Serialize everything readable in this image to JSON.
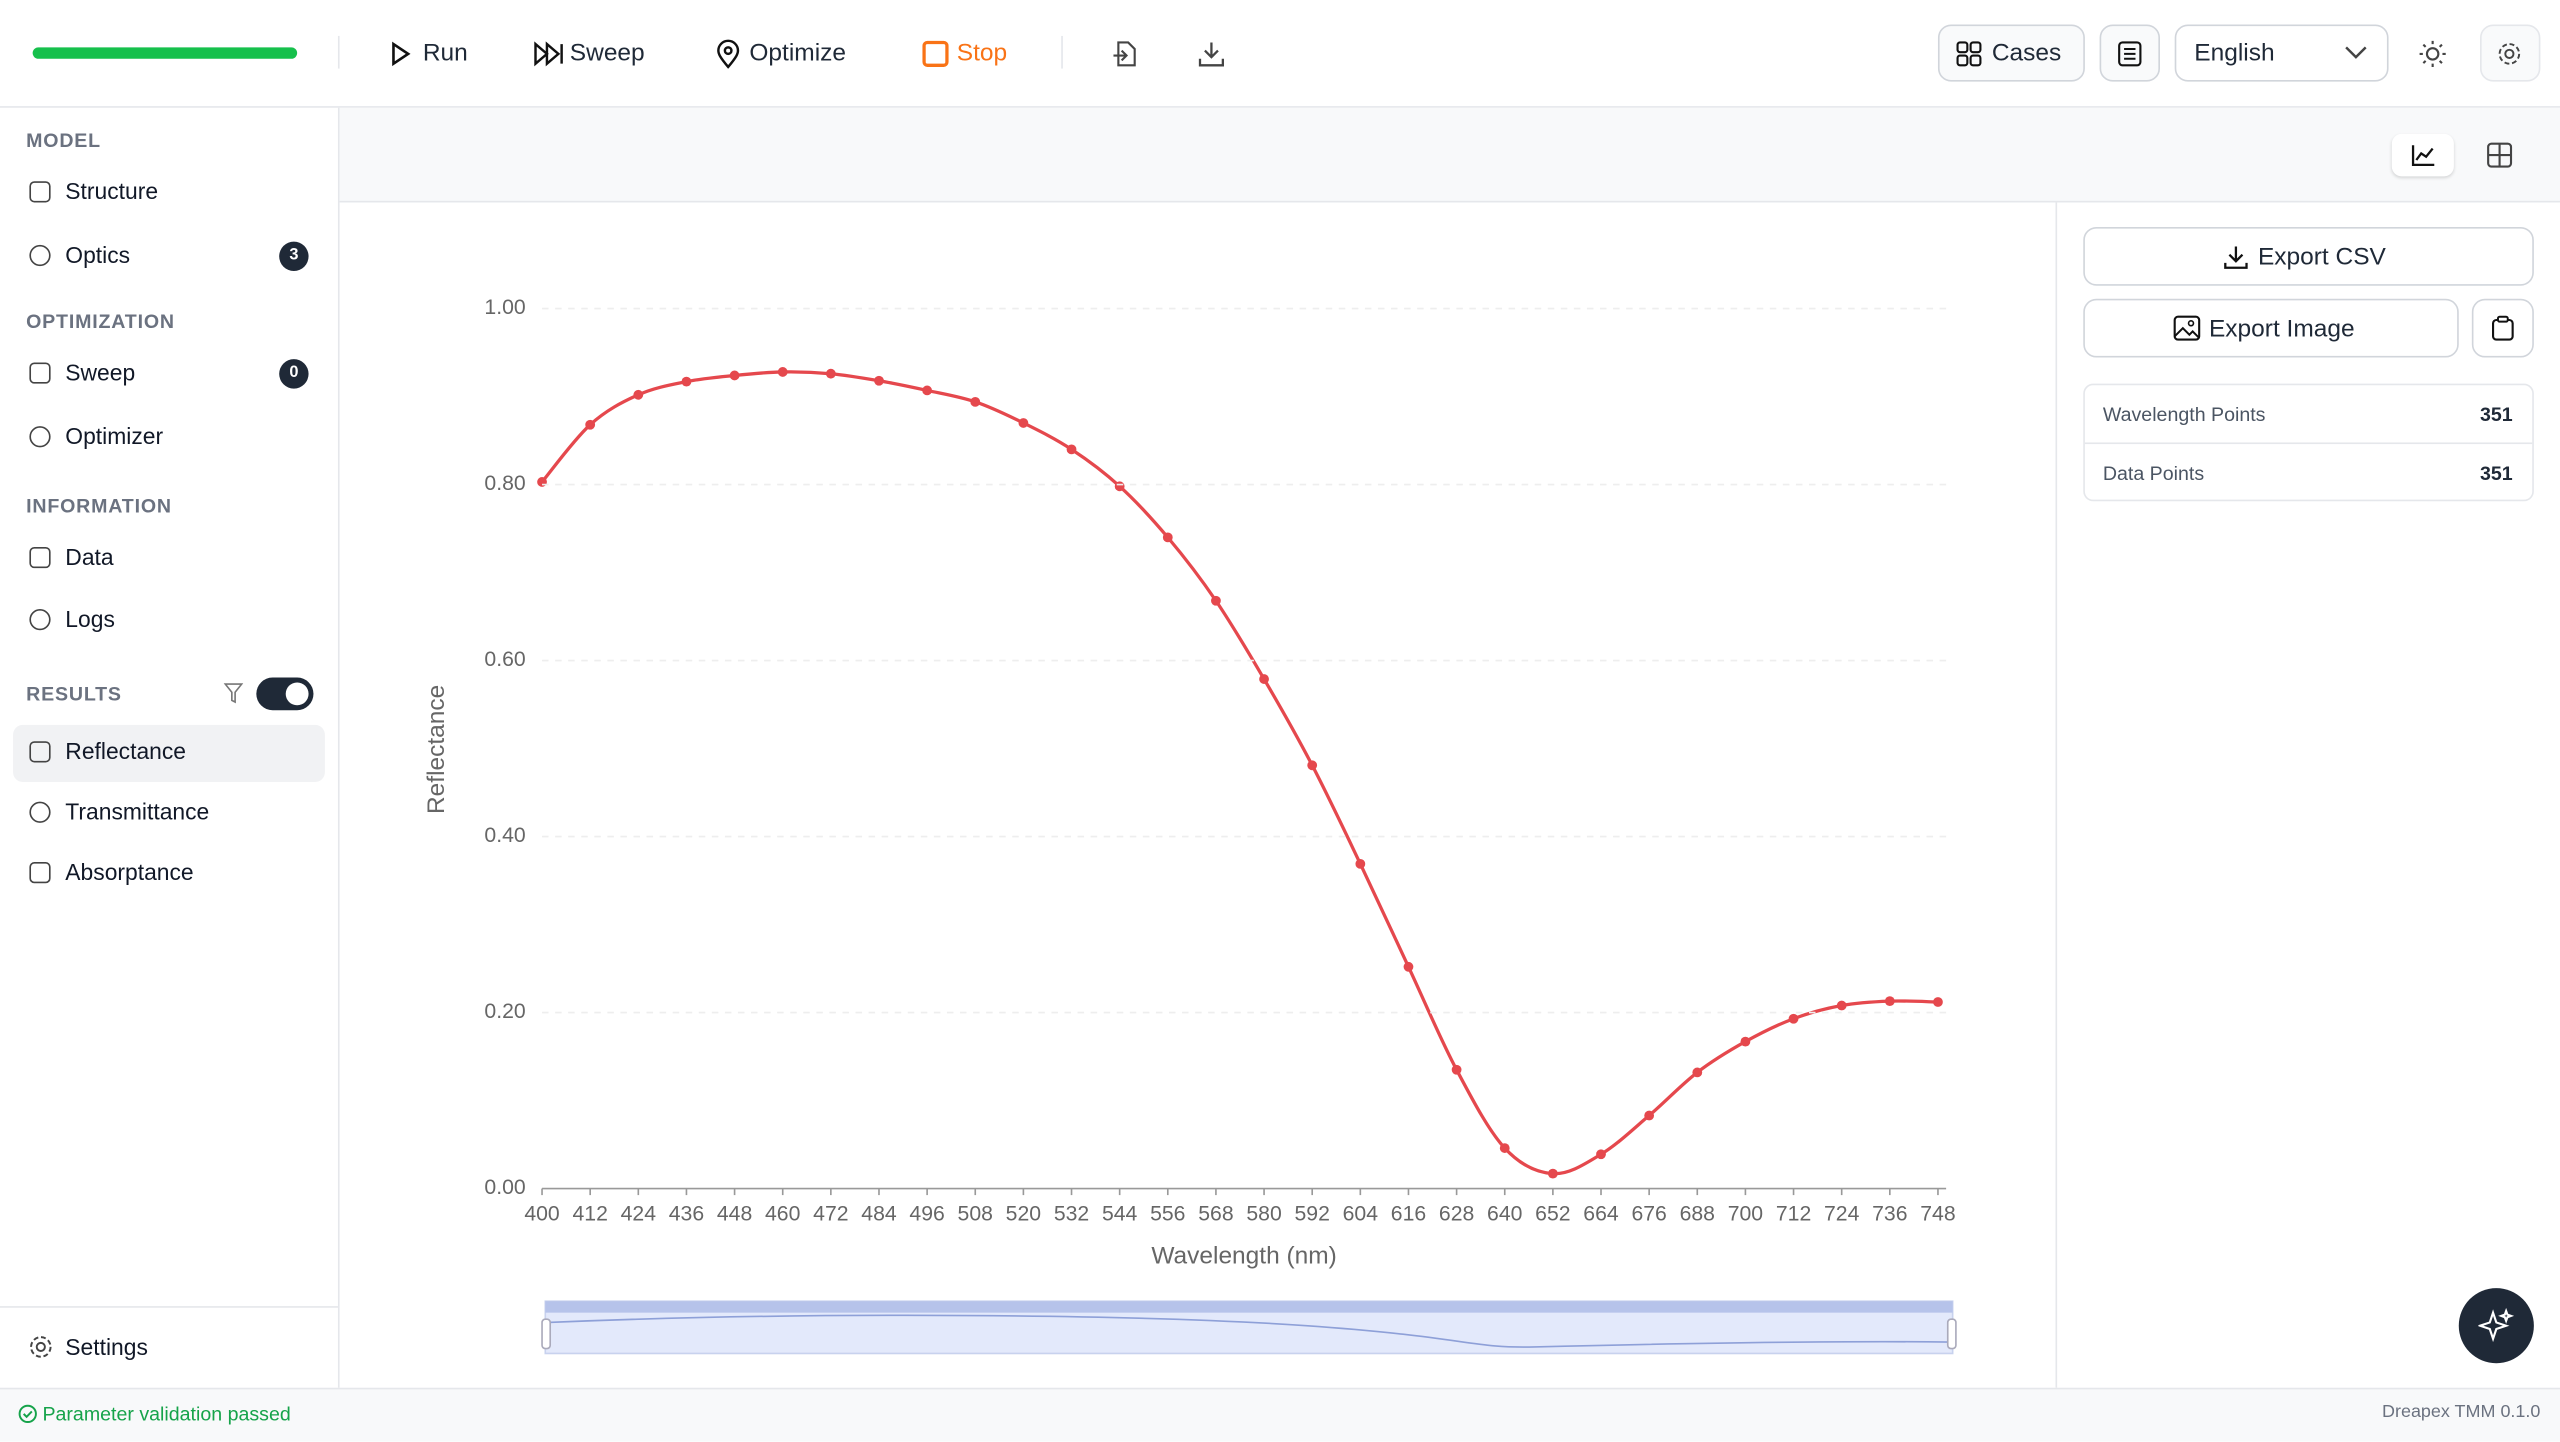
{
  "toolbar": {
    "run": "Run",
    "sweep": "Sweep",
    "optimize": "Optimize",
    "stop": "Stop",
    "cases": "Cases",
    "language": "English"
  },
  "sidebar": {
    "sections": [
      {
        "title": "MODEL",
        "items": [
          {
            "label": "Structure"
          },
          {
            "label": "Optics",
            "badge": "3"
          }
        ]
      },
      {
        "title": "OPTIMIZATION",
        "items": [
          {
            "label": "Sweep",
            "badge": "0"
          },
          {
            "label": "Optimizer"
          }
        ]
      },
      {
        "title": "INFORMATION",
        "items": [
          {
            "label": "Data"
          },
          {
            "label": "Logs"
          }
        ]
      },
      {
        "title": "RESULTS",
        "items": [
          {
            "label": "Reflectance"
          },
          {
            "label": "Transmittance"
          },
          {
            "label": "Absorptance"
          }
        ]
      }
    ],
    "settings": "Settings"
  },
  "panel": {
    "export_csv": "Export CSV",
    "export_image": "Export Image",
    "stats": [
      {
        "label": "Wavelength Points",
        "value": "351"
      },
      {
        "label": "Data Points",
        "value": "351"
      }
    ]
  },
  "status": {
    "message": "Parameter validation passed",
    "version": "Dreapex TMM 0.1.0"
  },
  "chart_data": {
    "type": "line",
    "x_label": "Wavelength (nm)",
    "y_label": "Reflectance",
    "x": [
      400,
      412,
      424,
      436,
      448,
      460,
      472,
      484,
      496,
      508,
      520,
      532,
      544,
      556,
      568,
      580,
      592,
      604,
      616,
      628,
      640,
      652,
      664,
      676,
      688,
      700,
      712,
      724,
      736,
      748
    ],
    "series": [
      {
        "name": "Reflectance",
        "color": "#e5484d",
        "values": [
          0.803,
          0.868,
          0.902,
          0.917,
          0.924,
          0.928,
          0.926,
          0.918,
          0.907,
          0.894,
          0.87,
          0.84,
          0.798,
          0.74,
          0.668,
          0.579,
          0.481,
          0.369,
          0.252,
          0.135,
          0.046,
          0.017,
          0.039,
          0.083,
          0.132,
          0.167,
          0.193,
          0.208,
          0.213,
          0.212
        ]
      }
    ],
    "xlim": [
      400,
      748
    ],
    "xticks": [
      400,
      412,
      424,
      436,
      448,
      460,
      472,
      484,
      496,
      508,
      520,
      532,
      544,
      556,
      568,
      580,
      592,
      604,
      616,
      628,
      640,
      652,
      664,
      676,
      688,
      700,
      712,
      724,
      736,
      748
    ],
    "ylim": [
      0,
      1
    ],
    "yticks": [
      {
        "value": 0,
        "label": "0.00"
      },
      {
        "value": 0.2,
        "label": "0.20"
      },
      {
        "value": 0.4,
        "label": "0.40"
      },
      {
        "value": 0.6,
        "label": "0.60"
      },
      {
        "value": 0.8,
        "label": "0.80"
      },
      {
        "value": 1,
        "label": "1.00"
      }
    ],
    "grid": true
  }
}
